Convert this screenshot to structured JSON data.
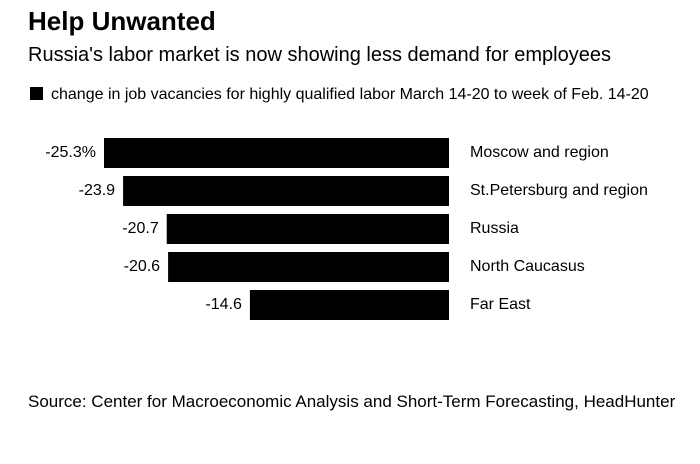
{
  "chart_data": {
    "type": "hbar",
    "title": "Help Unwanted",
    "subtitle": "Russia's labor market is now showing less demand for employees",
    "categories": [
      "Moscow and region",
      "St.Petersburg and region",
      "Russia",
      "North Caucasus",
      "Far East"
    ],
    "series": [
      {
        "name": "change in job vacancies for highly qualified labor March 14-20 to week of Feb. 14-20",
        "color": "#000000",
        "values": [
          -25.3,
          -23.9,
          -20.7,
          -20.6,
          -14.6
        ],
        "value_labels": [
          "-25.3%",
          "-23.9",
          "-20.7",
          "-20.6",
          "-14.6"
        ]
      }
    ],
    "source": "Source: Center for Macroeconomic Analysis and Short-Term Forecasting, HeadHunter"
  }
}
